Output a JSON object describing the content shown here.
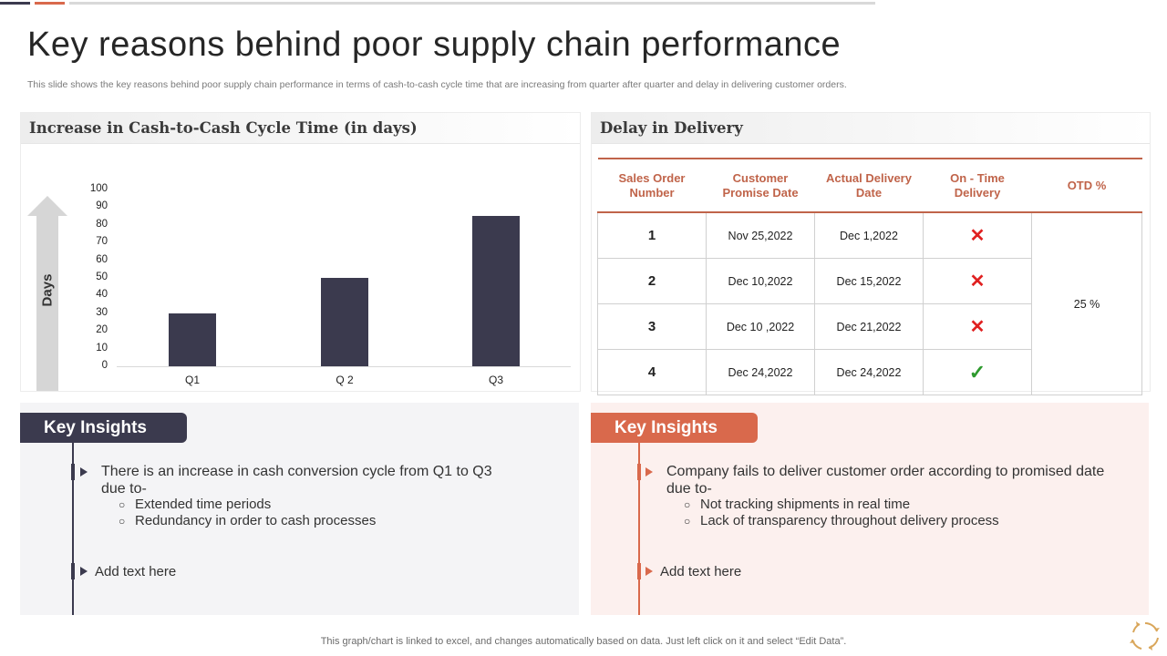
{
  "colors": {
    "dark": "#3b3a4e",
    "accent": "#c0644a",
    "tab_orange": "#d9694c"
  },
  "title": "Key reasons behind poor supply chain performance",
  "subtitle": "This slide shows the key reasons behind poor supply chain performance in terms of cash-to-cash cycle time that are increasing from quarter after quarter and delay in delivering customer orders.",
  "chart_panel": {
    "title": "Increase in Cash-to-Cash Cycle Time (in days)",
    "ylabel": "Days"
  },
  "chart_data": {
    "type": "bar",
    "categories": [
      "Q1",
      "Q 2",
      "Q3"
    ],
    "values": [
      30,
      50,
      85
    ],
    "ylabel": "Days",
    "ylim": [
      0,
      100
    ],
    "yticks": [
      0,
      10,
      20,
      30,
      40,
      50,
      60,
      70,
      80,
      90,
      100
    ],
    "grid": false
  },
  "delivery_panel": {
    "title": "Delay in Delivery",
    "headers": [
      "Sales Order Number",
      "Customer Promise Date",
      "Actual Delivery Date",
      "On - Time Delivery",
      "OTD %"
    ],
    "rows": [
      {
        "num": "1",
        "promise": "Nov 25,2022",
        "actual": "Dec 1,2022",
        "on_time": "cross-icon"
      },
      {
        "num": "2",
        "promise": "Dec 10,2022",
        "actual": "Dec 15,2022",
        "on_time": "cross-icon"
      },
      {
        "num": "3",
        "promise": "Dec 10 ,2022",
        "actual": "Dec 21,2022",
        "on_time": "cross-icon"
      },
      {
        "num": "4",
        "promise": "Dec 24,2022",
        "actual": "Dec 24,2022",
        "on_time": "check-icon"
      }
    ],
    "otd": "25 %"
  },
  "insights_left": {
    "tab": "Key Insights",
    "point1": "There is an increase in cash conversion cycle from Q1 to Q3 due to-",
    "subs": [
      "Extended time periods",
      "Redundancy in order to cash processes"
    ],
    "point2": "Add text here"
  },
  "insights_right": {
    "tab": "Key Insights",
    "point1": "Company fails to deliver customer order according to promised date due to-",
    "subs": [
      "Not tracking shipments in real time",
      "Lack of transparency throughout delivery process"
    ],
    "point2": "Add text here"
  },
  "footer": "This graph/chart is linked to excel,  and changes automatically based on data. Just left click on it and select “Edit Data”."
}
